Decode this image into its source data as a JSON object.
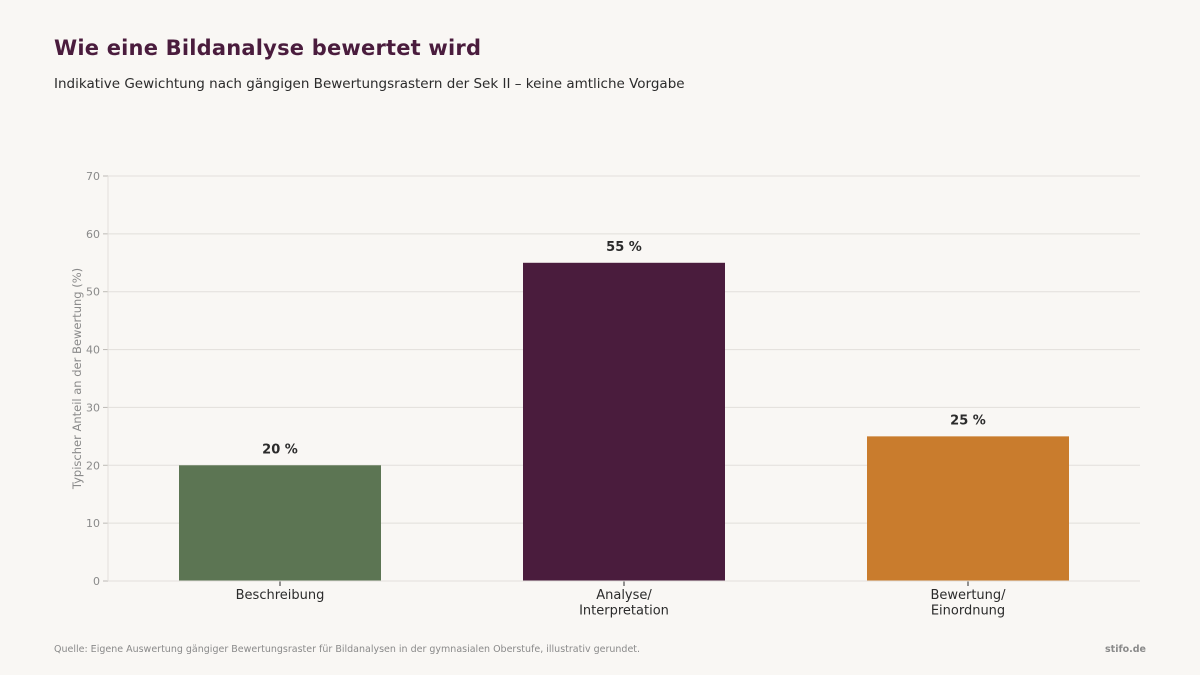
{
  "header": {
    "title": "Wie eine Bildanalyse bewertet wird",
    "subtitle": "Indikative Gewichtung nach gängigen Bewertungsrastern der Sek II – keine amtliche Vorgabe"
  },
  "footer": {
    "source": "Quelle: Eigene Auswertung gängiger Bewertungsraster für Bildanalysen in der gymnasialen Oberstufe, illustrativ gerundet.",
    "brand": "stifo.de"
  },
  "chart_data": {
    "type": "bar",
    "categories": [
      [
        "Beschreibung"
      ],
      [
        "Analyse/",
        "Interpretation"
      ],
      [
        "Bewertung/",
        "Einordnung"
      ]
    ],
    "values": [
      20,
      55,
      25
    ],
    "data_labels": [
      "20 %",
      "55 %",
      "25 %"
    ],
    "colors": [
      "#5c7553",
      "#4a1c3d",
      "#c97c2d"
    ],
    "ylabel": "Typischer Anteil an der Bewertung (%)",
    "xlabel": "",
    "ylim": [
      0,
      70
    ],
    "yticks": [
      0,
      10,
      20,
      30,
      40,
      50,
      60,
      70
    ],
    "grid": true,
    "legend": "none"
  }
}
